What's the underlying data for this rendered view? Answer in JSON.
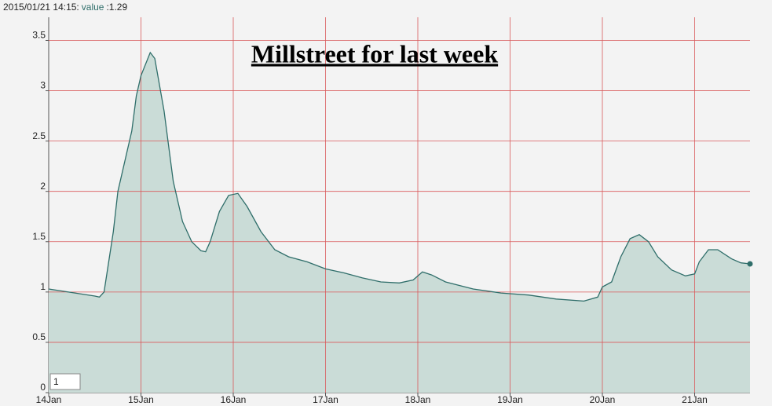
{
  "chart_data": {
    "type": "area",
    "title": "Millstreet for last week",
    "legend": {
      "date": "2015/01/21 14:15:",
      "series": "value",
      "value": ":1.29"
    },
    "roll_period": "1",
    "series": [
      {
        "name": "value",
        "color": "#2f6e6a",
        "fill": "#cadcd7",
        "x": [
          0,
          0.5,
          0.55,
          0.6,
          0.7,
          0.75,
          0.85,
          0.9,
          0.95,
          1.0,
          1.1,
          1.15,
          1.25,
          1.35,
          1.45,
          1.55,
          1.65,
          1.7,
          1.75,
          1.85,
          1.95,
          2.05,
          2.15,
          2.3,
          2.45,
          2.6,
          2.8,
          3.0,
          3.2,
          3.4,
          3.6,
          3.8,
          3.95,
          4.05,
          4.15,
          4.3,
          4.6,
          4.9,
          5.2,
          5.5,
          5.8,
          5.95,
          6.0,
          6.1,
          6.2,
          6.3,
          6.4,
          6.5,
          6.6,
          6.75,
          6.9,
          7.0,
          7.05,
          7.15,
          7.25,
          7.4,
          7.5,
          7.6
        ],
        "values": [
          1.03,
          0.96,
          0.95,
          1.0,
          1.6,
          2.0,
          2.4,
          2.6,
          2.95,
          3.15,
          3.38,
          3.32,
          2.8,
          2.1,
          1.7,
          1.5,
          1.41,
          1.4,
          1.5,
          1.8,
          1.96,
          1.98,
          1.85,
          1.6,
          1.42,
          1.35,
          1.3,
          1.23,
          1.19,
          1.14,
          1.1,
          1.09,
          1.12,
          1.2,
          1.17,
          1.1,
          1.03,
          0.99,
          0.97,
          0.93,
          0.91,
          0.95,
          1.05,
          1.1,
          1.35,
          1.53,
          1.57,
          1.5,
          1.35,
          1.22,
          1.16,
          1.18,
          1.3,
          1.42,
          1.42,
          1.33,
          1.29,
          1.28
        ]
      }
    ],
    "xlim": [
      0,
      7.6
    ],
    "xticks": [
      {
        "value": 0,
        "label": "14Jan"
      },
      {
        "value": 1,
        "label": "15Jan"
      },
      {
        "value": 2,
        "label": "16Jan"
      },
      {
        "value": 3,
        "label": "17Jan"
      },
      {
        "value": 4,
        "label": "18Jan"
      },
      {
        "value": 5,
        "label": "19Jan"
      },
      {
        "value": 6,
        "label": "20Jan"
      },
      {
        "value": 7,
        "label": "21Jan"
      }
    ],
    "ylim": [
      0,
      3.73
    ],
    "yticks": [
      0,
      0.5,
      1,
      1.5,
      2,
      2.5,
      3,
      3.5
    ],
    "grid": true,
    "grid_color": "#d9585a"
  }
}
